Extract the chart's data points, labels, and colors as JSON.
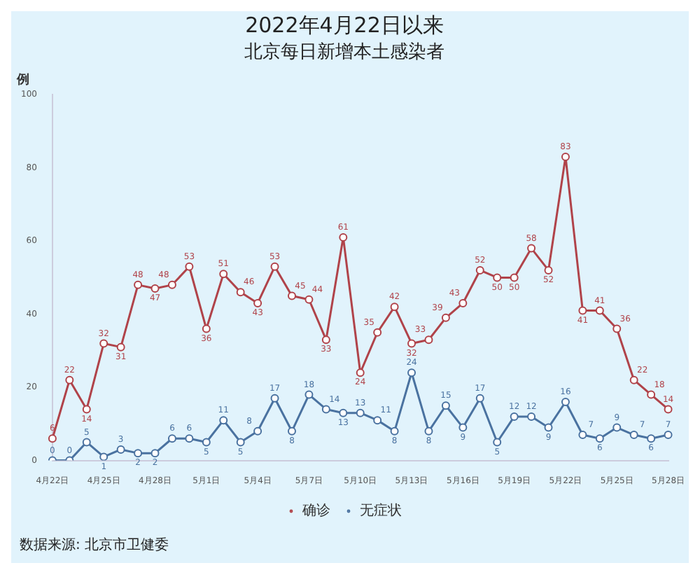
{
  "chart_data": {
    "type": "line",
    "title": "2022年4月22日以来",
    "subtitle": "北京每日新增本土感染者",
    "ylabel": "例",
    "categories": [
      "4月22日",
      null,
      null,
      "4月25日",
      null,
      null,
      "4月28日",
      null,
      null,
      "5月1日",
      null,
      null,
      "5月4日",
      null,
      null,
      "5月7日",
      null,
      null,
      "5月10日",
      null,
      null,
      "5月13日",
      null,
      null,
      "5月16日",
      null,
      null,
      "5月19日",
      null,
      null,
      "5月22日",
      null,
      null,
      "5月25日",
      null,
      null,
      "5月28日"
    ],
    "series": [
      {
        "name": "确诊",
        "color": "#b0434a",
        "values": [
          6,
          22,
          14,
          32,
          31,
          48,
          47,
          48,
          53,
          36,
          51,
          46,
          43,
          53,
          45,
          44,
          33,
          61,
          24,
          35,
          42,
          32,
          33,
          39,
          43,
          52,
          50,
          50,
          58,
          52,
          83,
          41,
          41,
          36,
          22,
          18,
          14
        ]
      },
      {
        "name": "无症状",
        "color": "#4a72a0",
        "values": [
          0,
          0,
          5,
          1,
          3,
          2,
          2,
          6,
          6,
          5,
          11,
          5,
          8,
          17,
          8,
          18,
          14,
          13,
          13,
          11,
          8,
          24,
          8,
          15,
          9,
          17,
          5,
          12,
          12,
          9,
          16,
          7,
          6,
          9,
          7,
          6,
          7
        ]
      }
    ],
    "ylim": [
      0,
      100
    ],
    "yticks": [
      0,
      20,
      40,
      60,
      80,
      100
    ],
    "grid": false,
    "legend": "bottom",
    "marker": "circle",
    "line_style": "solid",
    "data_labels": true,
    "annotations": [
      "数据来源: 北京市卫健委"
    ]
  }
}
